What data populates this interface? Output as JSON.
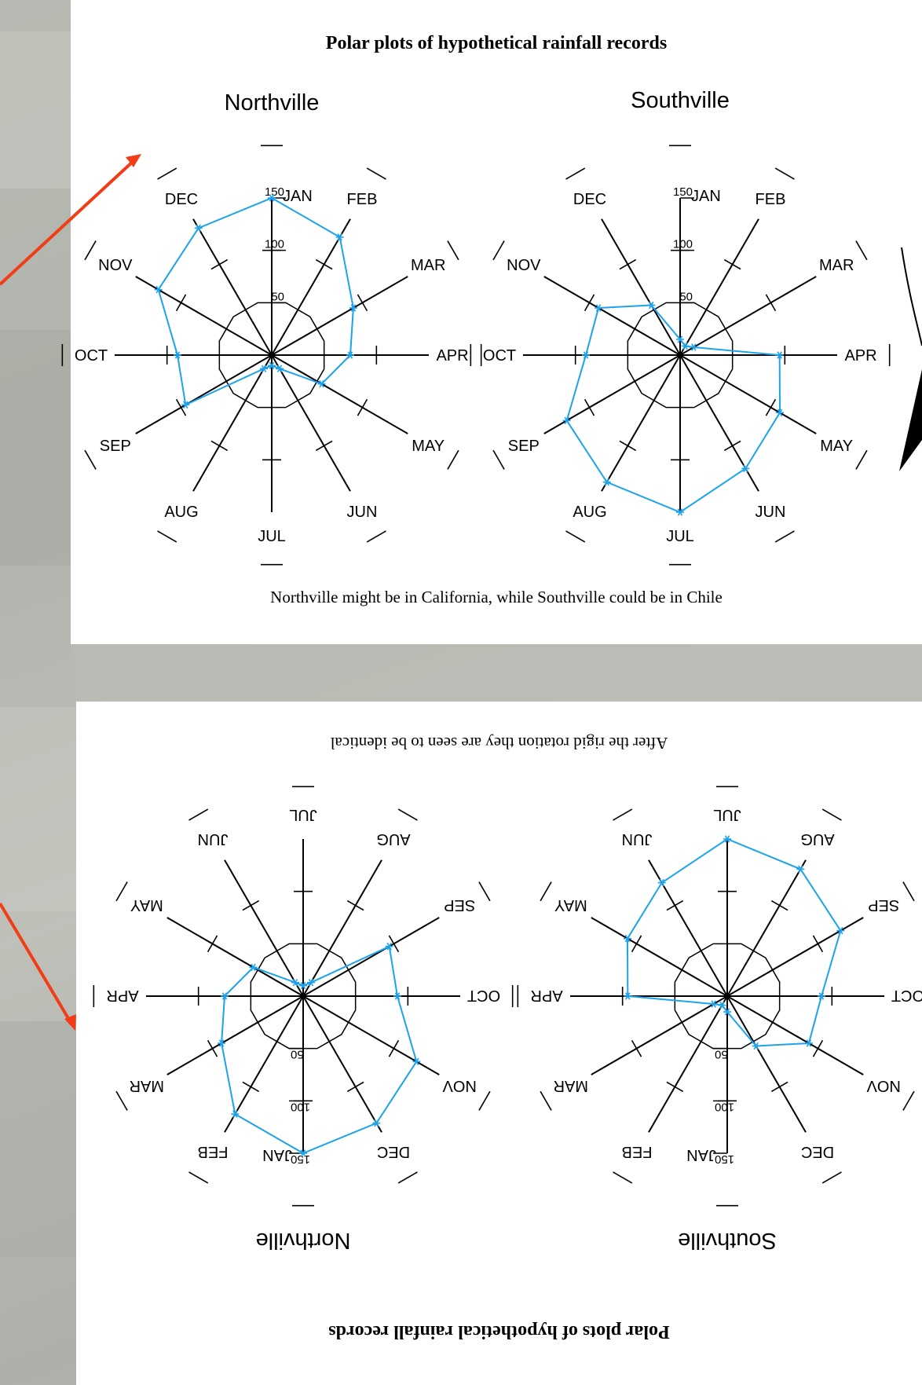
{
  "slide_top": {
    "title": "Polar plots of hypothetical rainfall records",
    "caption": "Northville might be in California, while Southville could be in Chile"
  },
  "slide_bottom": {
    "title": "Polar plots of hypothetical rainfall records",
    "caption": "After the rigid rotation they are seen to be identical"
  },
  "colors": {
    "series": "#1ca3ec",
    "arrow": "#f23c16",
    "axis": "#000000"
  },
  "chart_data": [
    {
      "type": "radar",
      "title": "Northville",
      "categories": [
        "JAN",
        "FEB",
        "MAR",
        "APR",
        "MAY",
        "JUN",
        "JUL",
        "AUG",
        "SEP",
        "OCT",
        "NOV",
        "DEC"
      ],
      "radial_ticks": [
        "50",
        "100",
        "150"
      ],
      "rlim": [
        0,
        150
      ],
      "values": [
        150,
        130,
        90,
        75,
        55,
        15,
        10,
        15,
        95,
        90,
        125,
        140
      ]
    },
    {
      "type": "radar",
      "title": "Southville",
      "categories": [
        "JAN",
        "FEB",
        "MAR",
        "APR",
        "MAY",
        "JUN",
        "JUL",
        "AUG",
        "SEP",
        "OCT",
        "NOV",
        "DEC"
      ],
      "radial_ticks": [
        "50",
        "100",
        "150"
      ],
      "rlim": [
        0,
        150
      ],
      "values": [
        15,
        10,
        15,
        95,
        110,
        125,
        150,
        140,
        125,
        90,
        90,
        55
      ]
    },
    {
      "type": "radar",
      "title": "Northville",
      "categories": [
        "JAN",
        "FEB",
        "MAR",
        "APR",
        "MAY",
        "JUN",
        "JUL",
        "AUG",
        "SEP",
        "OCT",
        "NOV",
        "DEC"
      ],
      "radial_ticks": [
        "50",
        "100",
        "150"
      ],
      "rlim": [
        0,
        150
      ],
      "rotated": 180,
      "values": [
        150,
        130,
        90,
        75,
        55,
        15,
        10,
        15,
        95,
        90,
        125,
        140
      ]
    },
    {
      "type": "radar",
      "title": "Southville",
      "categories": [
        "JAN",
        "FEB",
        "MAR",
        "APR",
        "MAY",
        "JUN",
        "JUL",
        "AUG",
        "SEP",
        "OCT",
        "NOV",
        "DEC"
      ],
      "radial_ticks": [
        "50",
        "100",
        "150"
      ],
      "rlim": [
        0,
        150
      ],
      "rotated": 180,
      "values": [
        15,
        10,
        15,
        95,
        110,
        125,
        150,
        140,
        125,
        90,
        90,
        55
      ]
    }
  ]
}
